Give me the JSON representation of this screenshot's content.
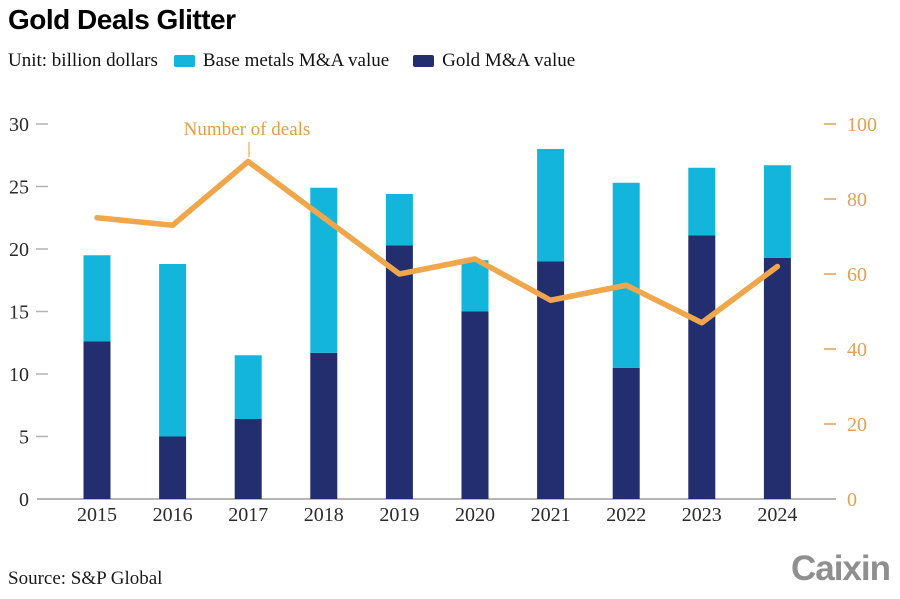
{
  "header": {
    "title": "Gold Deals Glitter",
    "unit_label": "Unit: billion dollars",
    "legend": [
      {
        "label": "Base metals M&A value",
        "color": "#13b5da"
      },
      {
        "label": "Gold M&A value",
        "color": "#232e6e"
      }
    ]
  },
  "chart_data": {
    "type": "bar",
    "subtype": "stacked-bars-with-line",
    "title": "Gold Deals Glitter",
    "unit": "billion dollars",
    "categories": [
      "2015",
      "2016",
      "2017",
      "2018",
      "2019",
      "2020",
      "2021",
      "2022",
      "2023",
      "2024"
    ],
    "series": [
      {
        "name": "Gold M&A value",
        "type": "bar",
        "color": "#232e6e",
        "values": [
          12.6,
          5.0,
          6.4,
          11.7,
          20.3,
          15.0,
          19.0,
          10.5,
          21.1,
          19.3
        ]
      },
      {
        "name": "Base metals M&A value",
        "type": "bar",
        "color": "#13b5da",
        "values": [
          6.9,
          13.8,
          5.1,
          13.2,
          4.1,
          4.1,
          9.0,
          14.8,
          5.4,
          7.4
        ]
      },
      {
        "name": "Number of deals",
        "type": "line",
        "axis": "right",
        "color": "#f0a64a",
        "values": [
          75,
          73,
          90,
          75,
          60,
          64,
          53,
          57,
          47,
          62
        ]
      }
    ],
    "stacked_totals": [
      19.5,
      18.8,
      11.5,
      24.9,
      24.4,
      19.1,
      28.0,
      25.3,
      26.5,
      26.7
    ],
    "annotation": "Number of deals",
    "left_axis": {
      "ticks": [
        0,
        5,
        10,
        15,
        20,
        25,
        30
      ],
      "range": [
        0,
        30
      ],
      "color": "#2b2b2b"
    },
    "right_axis": {
      "ticks": [
        0,
        20,
        40,
        60,
        80,
        100
      ],
      "range": [
        0,
        100
      ],
      "color": "#e2a053"
    },
    "grid": false,
    "legend_position": "top"
  },
  "footer": {
    "source": "Source: S&P Global",
    "logo": "Caixin"
  }
}
